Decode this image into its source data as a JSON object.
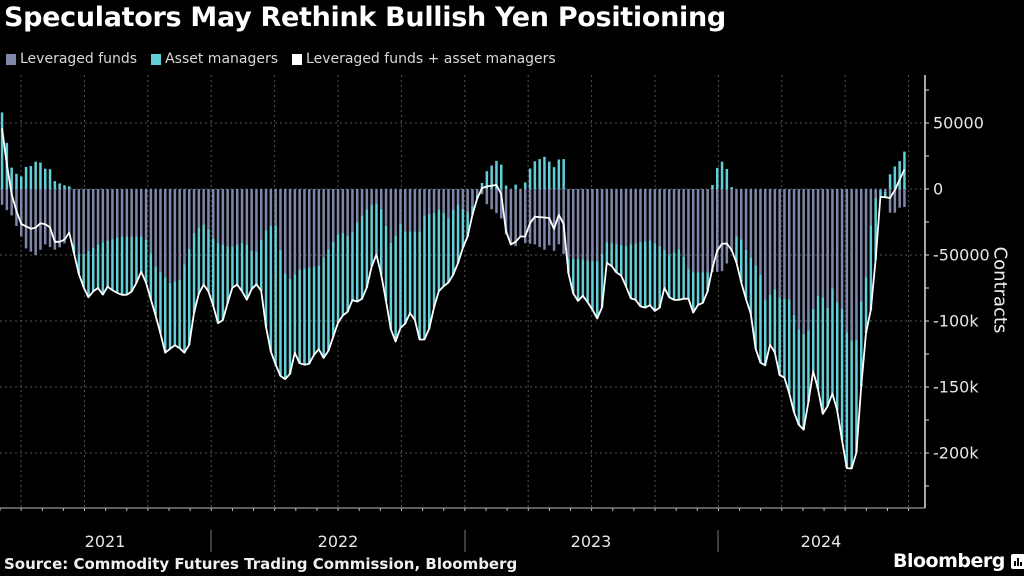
{
  "header": {
    "title": "Speculators May Rethink Bullish Yen Positioning"
  },
  "legend": [
    {
      "label": "Leveraged funds",
      "color": "#7e86aa"
    },
    {
      "label": "Asset managers",
      "color": "#62cfd8"
    },
    {
      "label": "Leveraged funds + asset managers",
      "color": "#ffffff"
    }
  ],
  "footer": {
    "source": "Source: Commodity Futures Trading Commission, Bloomberg",
    "brand": "Bloomberg"
  },
  "chart_data": {
    "type": "bar",
    "title": "Speculators May Rethink Bullish Yen Positioning",
    "xlabel": "",
    "ylabel": "Contracts",
    "ylim": [
      -240000,
      80000
    ],
    "yticks": [
      50000,
      0,
      -50000,
      -100000,
      -150000,
      -200000
    ],
    "ytick_labels": [
      "50000",
      "0",
      "-50000",
      "-100k",
      "-150k",
      "-200k"
    ],
    "x_labels": [
      "2021",
      "2022",
      "2023",
      "2024"
    ],
    "x_unit": "week index (weekly data, ~Mar 2021 to Sep 2024)",
    "weeks": 189,
    "grid": true,
    "legend_position": "top-left",
    "series": [
      {
        "name": "Leveraged funds",
        "kind": "stacked-bar",
        "unit": "thousand contracts",
        "points": [
          [
            0,
            -12
          ],
          [
            2,
            -20
          ],
          [
            4,
            -36
          ],
          [
            5,
            -45
          ],
          [
            7,
            -50
          ],
          [
            9,
            -42
          ],
          [
            11,
            -46
          ],
          [
            12.7,
            -43
          ],
          [
            14,
            -35
          ],
          [
            16.3,
            -51
          ],
          [
            20.4,
            -41
          ],
          [
            24.6,
            -36
          ],
          [
            29.8,
            -36
          ],
          [
            31.9,
            -58
          ],
          [
            35,
            -71
          ],
          [
            37,
            -69
          ],
          [
            40.2,
            -31
          ],
          [
            42.3,
            -26
          ],
          [
            44.4,
            -40
          ],
          [
            47.5,
            -44
          ],
          [
            50.6,
            -40
          ],
          [
            52.7,
            -50
          ],
          [
            53.8,
            -40
          ],
          [
            54.8,
            -32
          ],
          [
            55.8,
            -28
          ],
          [
            57,
            -28
          ],
          [
            58,
            -46
          ],
          [
            59,
            -64
          ],
          [
            60,
            -68
          ],
          [
            62,
            -61
          ],
          [
            66,
            -58
          ],
          [
            68.3,
            -44
          ],
          [
            70.4,
            -32
          ],
          [
            72.5,
            -36
          ],
          [
            73.5,
            -28
          ],
          [
            75,
            -20
          ],
          [
            76.7,
            -12
          ],
          [
            78,
            -11
          ],
          [
            79,
            -15
          ],
          [
            80,
            -28
          ],
          [
            81.5,
            -47
          ],
          [
            82.5,
            -23
          ],
          [
            84,
            -32
          ],
          [
            87,
            -32
          ],
          [
            88,
            -20
          ],
          [
            90,
            -18
          ],
          [
            91.25,
            -15
          ],
          [
            93,
            -22
          ],
          [
            94.8,
            -11
          ],
          [
            96,
            -15
          ],
          [
            97.5,
            -18
          ],
          [
            98.5,
            -8
          ],
          [
            99.6,
            0
          ],
          [
            100.6,
            -10
          ],
          [
            102.7,
            -18
          ],
          [
            103.75,
            -19
          ],
          [
            104.8,
            -33
          ],
          [
            105.8,
            -40
          ],
          [
            106.9,
            -44
          ],
          [
            108,
            -36
          ],
          [
            109,
            -41
          ],
          [
            111,
            -42
          ],
          [
            113,
            -46
          ],
          [
            114.2,
            -42
          ],
          [
            115.2,
            -48
          ],
          [
            116.25,
            -40
          ],
          [
            117.3,
            -53
          ],
          [
            120,
            -53
          ],
          [
            124.6,
            -55
          ],
          [
            125.6,
            -40
          ],
          [
            130,
            -43
          ],
          [
            133,
            -40
          ],
          [
            135,
            -39
          ],
          [
            137,
            -43
          ],
          [
            139.2,
            -50
          ],
          [
            141.3,
            -45
          ],
          [
            143.3,
            -63
          ],
          [
            148.5,
            -63
          ],
          [
            150.4,
            -62
          ],
          [
            151.7,
            -50
          ],
          [
            152.3,
            -45
          ],
          [
            153.3,
            -32
          ],
          [
            154.8,
            -45
          ],
          [
            157.9,
            -63
          ],
          [
            158.9,
            -84
          ],
          [
            160,
            -80
          ],
          [
            161,
            -76
          ],
          [
            162,
            -82
          ],
          [
            164.4,
            -84
          ],
          [
            165.2,
            -99
          ],
          [
            166.3,
            -109
          ],
          [
            167.3,
            -110
          ],
          [
            168.3,
            -106
          ],
          [
            169.4,
            -82
          ],
          [
            170.4,
            -80
          ],
          [
            171.5,
            -84
          ],
          [
            172.5,
            -96
          ],
          [
            173.1,
            -71
          ],
          [
            174.2,
            -89
          ],
          [
            175.2,
            -91
          ],
          [
            176.25,
            -114
          ],
          [
            177.3,
            -115
          ],
          [
            178.3,
            -114
          ],
          [
            179.2,
            -77
          ],
          [
            180,
            -67
          ],
          [
            180.8,
            -32
          ],
          [
            181.9,
            -8
          ],
          [
            182.5,
            0
          ],
          [
            184,
            -2
          ],
          [
            185,
            -18
          ],
          [
            186,
            -18
          ],
          [
            187.3,
            -13
          ],
          [
            188.5,
            -14
          ]
        ]
      },
      {
        "name": "Asset managers",
        "kind": "stacked-bar",
        "unit": "thousand contracts",
        "derived": "net minus leveraged funds"
      },
      {
        "name": "Leveraged funds + asset managers",
        "kind": "line",
        "unit": "thousand contracts",
        "points": [
          [
            0,
            46
          ],
          [
            1.7,
            0
          ],
          [
            3.75,
            -26
          ],
          [
            6.5,
            -31
          ],
          [
            8.3,
            -25
          ],
          [
            10,
            -29
          ],
          [
            11,
            -40
          ],
          [
            12.7,
            -40
          ],
          [
            14,
            -33
          ],
          [
            16.3,
            -69
          ],
          [
            18,
            -82
          ],
          [
            19.8,
            -74
          ],
          [
            21,
            -80
          ],
          [
            22,
            -74
          ],
          [
            23.5,
            -78
          ],
          [
            25.6,
            -81
          ],
          [
            27.3,
            -77
          ],
          [
            29.2,
            -61
          ],
          [
            30.8,
            -81
          ],
          [
            32.5,
            -102
          ],
          [
            34,
            -124
          ],
          [
            35.4,
            -120
          ],
          [
            36.5,
            -117
          ],
          [
            37.5,
            -124
          ],
          [
            38.75,
            -124
          ],
          [
            40.2,
            -89
          ],
          [
            41.7,
            -71
          ],
          [
            43.3,
            -79
          ],
          [
            45.4,
            -107
          ],
          [
            47.9,
            -75
          ],
          [
            49.6,
            -71
          ],
          [
            50.6,
            -87
          ],
          [
            52,
            -76
          ],
          [
            53.3,
            -71
          ],
          [
            54.2,
            -79
          ],
          [
            55.4,
            -117
          ],
          [
            56.9,
            -132
          ],
          [
            58.5,
            -146
          ],
          [
            60,
            -140
          ],
          [
            61,
            -124
          ],
          [
            62,
            -132
          ],
          [
            63.75,
            -134
          ],
          [
            64.8,
            -127
          ],
          [
            65.8,
            -120
          ],
          [
            67.3,
            -130
          ],
          [
            69,
            -112
          ],
          [
            70.4,
            -97
          ],
          [
            71.9,
            -94
          ],
          [
            72.9,
            -84
          ],
          [
            74.6,
            -86
          ],
          [
            75.6,
            -79
          ],
          [
            76.7,
            -67
          ],
          [
            77.3,
            -51
          ],
          [
            78.3,
            -49
          ],
          [
            79.4,
            -74
          ],
          [
            80.8,
            -99
          ],
          [
            81.5,
            -124
          ],
          [
            82.5,
            -107
          ],
          [
            84,
            -102
          ],
          [
            85,
            -94
          ],
          [
            86,
            -99
          ],
          [
            87,
            -114
          ],
          [
            88.1,
            -114
          ],
          [
            89.2,
            -104
          ],
          [
            90.6,
            -79
          ],
          [
            91.9,
            -74
          ],
          [
            93.3,
            -70
          ],
          [
            94.8,
            -59
          ],
          [
            95.5,
            -49
          ],
          [
            97,
            -36
          ],
          [
            98.1,
            -18
          ],
          [
            99.6,
            0
          ],
          [
            101,
            2
          ],
          [
            103,
            3
          ],
          [
            103.75,
            0
          ],
          [
            104.4,
            -10
          ],
          [
            105.2,
            -39
          ],
          [
            106.5,
            -44
          ],
          [
            107.5,
            -36
          ],
          [
            109,
            -36
          ],
          [
            110,
            -26
          ],
          [
            111,
            -21
          ],
          [
            114.2,
            -22
          ],
          [
            114.8,
            -33
          ],
          [
            115.6,
            -22
          ],
          [
            116.25,
            -18
          ],
          [
            116.9,
            -22
          ],
          [
            117.7,
            -59
          ],
          [
            119,
            -79
          ],
          [
            119.8,
            -86
          ],
          [
            120.8,
            -80
          ],
          [
            122.5,
            -88
          ],
          [
            124,
            -98
          ],
          [
            125.2,
            -88
          ],
          [
            126,
            -56
          ],
          [
            127.3,
            -59
          ],
          [
            128.3,
            -65
          ],
          [
            129.4,
            -66
          ],
          [
            130.4,
            -79
          ],
          [
            131.5,
            -86
          ],
          [
            132.5,
            -82
          ],
          [
            133.3,
            -93
          ],
          [
            134.4,
            -88
          ],
          [
            135.4,
            -88
          ],
          [
            136.5,
            -96
          ],
          [
            137.5,
            -84
          ],
          [
            138.1,
            -73
          ],
          [
            139.2,
            -84
          ],
          [
            141.9,
            -84
          ],
          [
            142.9,
            -75
          ],
          [
            143.3,
            -107
          ],
          [
            144.4,
            -86
          ],
          [
            145.4,
            -89
          ],
          [
            146.5,
            -84
          ],
          [
            147.5,
            -71
          ],
          [
            148.5,
            -49
          ],
          [
            149.6,
            -44
          ],
          [
            150.4,
            -39
          ],
          [
            151.7,
            -44
          ],
          [
            152.7,
            -51
          ],
          [
            153.75,
            -67
          ],
          [
            154.8,
            -82
          ],
          [
            155.8,
            -89
          ],
          [
            156.9,
            -120
          ],
          [
            157.9,
            -130
          ],
          [
            158.5,
            -139
          ],
          [
            159.6,
            -127
          ],
          [
            160.4,
            -109
          ],
          [
            161.7,
            -141
          ],
          [
            162.7,
            -141
          ],
          [
            163.5,
            -146
          ],
          [
            164.6,
            -165
          ],
          [
            165.6,
            -175
          ],
          [
            166.7,
            -185
          ],
          [
            167.7,
            -176
          ],
          [
            168.5,
            -137
          ],
          [
            169.4,
            -139
          ],
          [
            170.4,
            -160
          ],
          [
            171.5,
            -179
          ],
          [
            172.5,
            -150
          ],
          [
            173.5,
            -160
          ],
          [
            174.6,
            -177
          ],
          [
            175.6,
            -210
          ],
          [
            176.7,
            -214
          ],
          [
            177.9,
            -205
          ],
          [
            178.75,
            -160
          ],
          [
            180,
            -109
          ],
          [
            180.8,
            -99
          ],
          [
            181.9,
            -59
          ],
          [
            182.9,
            -6
          ],
          [
            183.9,
            -6
          ],
          [
            184.8,
            -8
          ],
          [
            186.5,
            2
          ],
          [
            187.7,
            14
          ],
          [
            188.5,
            16
          ]
        ]
      }
    ]
  }
}
